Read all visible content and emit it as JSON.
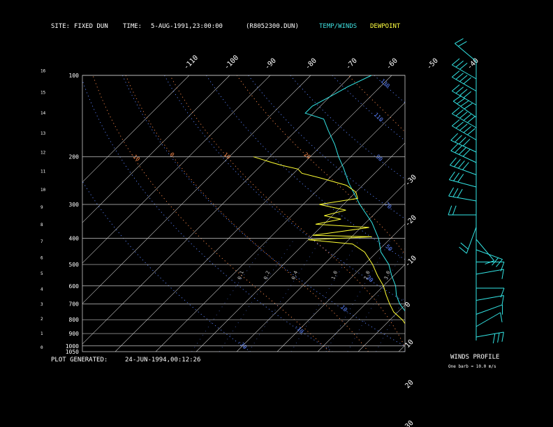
{
  "header": {
    "site_label": "SITE:",
    "site_value": "FIXED DUN",
    "time_label": "TIME:",
    "time_value": "5-AUG-1991,23:00:00",
    "file": "(R8052300.DUN)",
    "legend_temp": "TEMP/WINDS",
    "legend_dew": "DEWPOINT"
  },
  "footer": {
    "generated_label": "PLOT GENERATED:",
    "generated_value": "24-JUN-1994,00:12:26",
    "winds_title": "WINDS PROFILE",
    "winds_note": "One barb = 10.0 m/s"
  },
  "colors": {
    "temp": "#33e6e6",
    "dew": "#ffff33",
    "isotherm": "#c8c8c8",
    "dry_adiabat": "#5a82ff",
    "moist_adiabat": "#ff8a4a",
    "header_temp": "#3fe0e0",
    "header_dew": "#ffff40"
  },
  "chart_data": {
    "type": "line",
    "pressure_ticks": [
      "100",
      "200",
      "300",
      "400",
      "500",
      "600",
      "700",
      "800",
      "900",
      "1000",
      "1050"
    ],
    "pressure_values": [
      100,
      200,
      300,
      400,
      500,
      600,
      700,
      800,
      900,
      1000,
      1050
    ],
    "height_ticks": [
      "16",
      "15",
      "14",
      "13",
      "12",
      "11",
      "10",
      "9",
      "8",
      "7",
      "6",
      "5",
      "4",
      "3",
      "2",
      "1",
      "0"
    ],
    "height_values": [
      16,
      15,
      14,
      13,
      12,
      11,
      10,
      9,
      8,
      7,
      6,
      5,
      4,
      3,
      2,
      1,
      0
    ],
    "top_temp_labels": [
      "-110",
      "-100",
      "-90",
      "-80",
      "-70",
      "-60",
      "-50",
      "-40"
    ],
    "top_temp_values": [
      -110,
      -100,
      -90,
      -80,
      -70,
      -60,
      -50,
      -40
    ],
    "right_temp_labels": [
      "-30",
      "-20",
      "-10",
      "0",
      "10",
      "20",
      "30"
    ],
    "right_temp_values": [
      -30,
      -20,
      -10,
      0,
      10,
      20,
      30
    ],
    "isotherm_values": [
      -110,
      -100,
      -90,
      -80,
      -70,
      -60,
      -50,
      -40,
      -30,
      -20,
      -10,
      0,
      10,
      20,
      30,
      40,
      50
    ],
    "dry_adiabat_values": [
      -30,
      -10,
      10,
      30,
      50,
      70,
      90,
      110,
      130,
      150,
      170,
      190,
      210,
      230
    ],
    "dry_adiabat_labels": [
      {
        "t": "-30",
        "p": 970
      },
      {
        "t": "-10",
        "p": 850
      },
      {
        "t": "10",
        "p": 720
      },
      {
        "t": "30",
        "p": 560
      },
      {
        "t": "50",
        "p": 430
      },
      {
        "t": "70",
        "p": 300
      },
      {
        "t": "90",
        "p": 200
      },
      {
        "t": "110",
        "p": 140
      },
      {
        "t": "130",
        "p": 105
      },
      {
        "t": "150",
        "p": 105
      },
      {
        "t": "170",
        "p": 105
      },
      {
        "t": "190",
        "p": 105
      },
      {
        "t": "210",
        "p": 105
      }
    ],
    "moist_adiabat_values": [
      -10,
      0,
      10,
      20,
      30
    ],
    "moist_adiabat_labels": [
      {
        "t": "-10",
        "p": 197
      },
      {
        "t": "0",
        "p": 197
      },
      {
        "t": "10",
        "p": 197
      },
      {
        "t": "20",
        "p": 197
      },
      {
        "t": "30",
        "p": 197
      }
    ],
    "mixing_ratio_values": [
      0.1,
      0.2,
      0.4,
      1.0,
      2.0,
      3.0,
      5.0,
      8.0,
      12.0,
      20.0
    ],
    "mixing_ratio_labels": [
      "0.1",
      "0.2",
      "0.4",
      "1.0",
      "2.0",
      "3.0",
      "5.0",
      "8.0",
      "12.0",
      "20.0"
    ],
    "series": [
      {
        "name": "TEMP/WINDS",
        "points": [
          {
            "p": 1040,
            "t": 24
          },
          {
            "p": 1020,
            "t": 22
          },
          {
            "p": 1000,
            "t": 20
          },
          {
            "p": 975,
            "t": 18
          },
          {
            "p": 950,
            "t": 15.5
          },
          {
            "p": 925,
            "t": 14
          },
          {
            "p": 900,
            "t": 12
          },
          {
            "p": 850,
            "t": 8.5
          },
          {
            "p": 800,
            "t": 5.5
          },
          {
            "p": 750,
            "t": 2
          },
          {
            "p": 700,
            "t": -1.5
          },
          {
            "p": 650,
            "t": -4.5
          },
          {
            "p": 600,
            "t": -7
          },
          {
            "p": 550,
            "t": -10.5
          },
          {
            "p": 500,
            "t": -14
          },
          {
            "p": 450,
            "t": -19
          },
          {
            "p": 400,
            "t": -23
          },
          {
            "p": 350,
            "t": -28.5
          },
          {
            "p": 300,
            "t": -36
          },
          {
            "p": 250,
            "t": -44
          },
          {
            "p": 220,
            "t": -49
          },
          {
            "p": 200,
            "t": -53
          },
          {
            "p": 180,
            "t": -57
          },
          {
            "p": 160,
            "t": -62
          },
          {
            "p": 145,
            "t": -66
          },
          {
            "p": 138,
            "t": -72
          },
          {
            "p": 130,
            "t": -72
          },
          {
            "p": 120,
            "t": -70
          },
          {
            "p": 110,
            "t": -68
          },
          {
            "p": 100,
            "t": -65
          }
        ]
      },
      {
        "name": "DEWPOINT",
        "points": [
          {
            "p": 1040,
            "t": 20
          },
          {
            "p": 1020,
            "t": 16
          },
          {
            "p": 1000,
            "t": 14
          },
          {
            "p": 950,
            "t": 13
          },
          {
            "p": 925,
            "t": 10
          },
          {
            "p": 900,
            "t": 9.5
          },
          {
            "p": 850,
            "t": 6
          },
          {
            "p": 800,
            "t": 3
          },
          {
            "p": 750,
            "t": -1
          },
          {
            "p": 700,
            "t": -4
          },
          {
            "p": 650,
            "t": -7
          },
          {
            "p": 600,
            "t": -10
          },
          {
            "p": 550,
            "t": -14
          },
          {
            "p": 500,
            "t": -18
          },
          {
            "p": 450,
            "t": -23
          },
          {
            "p": 420,
            "t": -28
          },
          {
            "p": 405,
            "t": -40
          },
          {
            "p": 395,
            "t": -25
          },
          {
            "p": 390,
            "t": -40
          },
          {
            "p": 380,
            "t": -35
          },
          {
            "p": 365,
            "t": -28
          },
          {
            "p": 355,
            "t": -42
          },
          {
            "p": 340,
            "t": -37
          },
          {
            "p": 330,
            "t": -42
          },
          {
            "p": 315,
            "t": -38
          },
          {
            "p": 300,
            "t": -46
          },
          {
            "p": 285,
            "t": -38
          },
          {
            "p": 270,
            "t": -40
          },
          {
            "p": 255,
            "t": -44
          },
          {
            "p": 240,
            "t": -52
          },
          {
            "p": 230,
            "t": -58
          },
          {
            "p": 222,
            "t": -60
          },
          {
            "p": 215,
            "t": -65
          },
          {
            "p": 210,
            "t": -68
          },
          {
            "p": 200,
            "t": -74
          }
        ]
      }
    ],
    "winds": [
      {
        "h": 16.0,
        "dir": 310,
        "spd": 20
      },
      {
        "h": 15.0,
        "dir": 300,
        "spd": 30
      },
      {
        "h": 14.3,
        "dir": 300,
        "spd": 35
      },
      {
        "h": 13.5,
        "dir": 300,
        "spd": 40
      },
      {
        "h": 12.8,
        "dir": 305,
        "spd": 40
      },
      {
        "h": 12.2,
        "dir": 300,
        "spd": 45
      },
      {
        "h": 11.5,
        "dir": 300,
        "spd": 45
      },
      {
        "h": 10.8,
        "dir": 295,
        "spd": 40
      },
      {
        "h": 10.2,
        "dir": 295,
        "spd": 40
      },
      {
        "h": 9.5,
        "dir": 290,
        "spd": 35
      },
      {
        "h": 8.8,
        "dir": 285,
        "spd": 30
      },
      {
        "h": 8.0,
        "dir": 280,
        "spd": 30
      },
      {
        "h": 7.2,
        "dir": 270,
        "spd": 20
      },
      {
        "h": 6.5,
        "dir": 200,
        "spd": 15
      },
      {
        "h": 5.8,
        "dir": 140,
        "spd": 10
      },
      {
        "h": 5.2,
        "dir": 110,
        "spd": 15
      },
      {
        "h": 4.5,
        "dir": 90,
        "spd": 10
      },
      {
        "h": 3.8,
        "dir": 80,
        "spd": 10
      },
      {
        "h": 3.0,
        "dir": 90,
        "spd": 10
      },
      {
        "h": 2.3,
        "dir": 80,
        "spd": 10
      },
      {
        "h": 1.5,
        "dir": 70,
        "spd": 10
      },
      {
        "h": 0.8,
        "dir": 60,
        "spd": 10
      },
      {
        "h": 0.2,
        "dir": 80,
        "spd": 30
      }
    ]
  }
}
